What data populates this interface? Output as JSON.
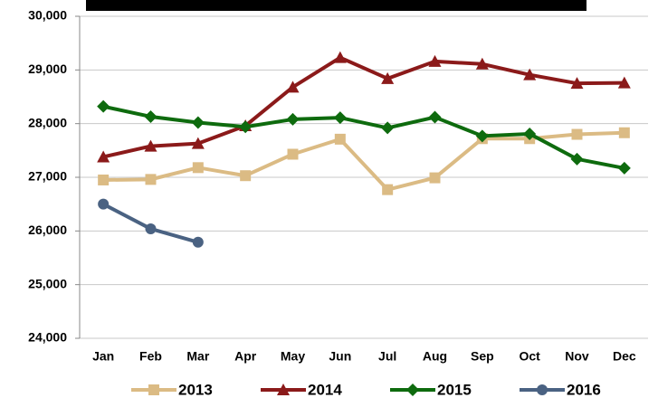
{
  "chart_data": {
    "type": "line",
    "categories": [
      "Jan",
      "Feb",
      "Mar",
      "Apr",
      "May",
      "Jun",
      "Jul",
      "Aug",
      "Sep",
      "Oct",
      "Nov",
      "Dec"
    ],
    "series": [
      {
        "name": "2013",
        "color": "#dbbb84",
        "marker": "square",
        "values": [
          26950,
          26960,
          27180,
          27030,
          27430,
          27710,
          26770,
          26990,
          27720,
          27720,
          27800,
          27830
        ]
      },
      {
        "name": "2014",
        "color": "#8b1a1a",
        "marker": "triangle",
        "values": [
          27380,
          27580,
          27630,
          27960,
          28680,
          29230,
          28840,
          29160,
          29110,
          28910,
          28750,
          28760
        ]
      },
      {
        "name": "2015",
        "color": "#0e6b0e",
        "marker": "diamond",
        "values": [
          28320,
          28130,
          28020,
          27940,
          28080,
          28110,
          27920,
          28120,
          27770,
          27810,
          27340,
          27170
        ]
      },
      {
        "name": "2016",
        "color": "#4a6282",
        "marker": "circle",
        "values": [
          26500,
          26040,
          25790,
          null,
          null,
          null,
          null,
          null,
          null,
          null,
          null,
          null
        ]
      }
    ],
    "ylim": [
      24000,
      30000
    ],
    "yticks": [
      {
        "value": 24000,
        "label": "24,000"
      },
      {
        "value": 25000,
        "label": "25,000"
      },
      {
        "value": 26000,
        "label": "26,000"
      },
      {
        "value": 27000,
        "label": "27,000"
      },
      {
        "value": 28000,
        "label": "28,000"
      },
      {
        "value": 29000,
        "label": "29,000"
      },
      {
        "value": 30000,
        "label": "30,000"
      }
    ],
    "grid": true
  }
}
